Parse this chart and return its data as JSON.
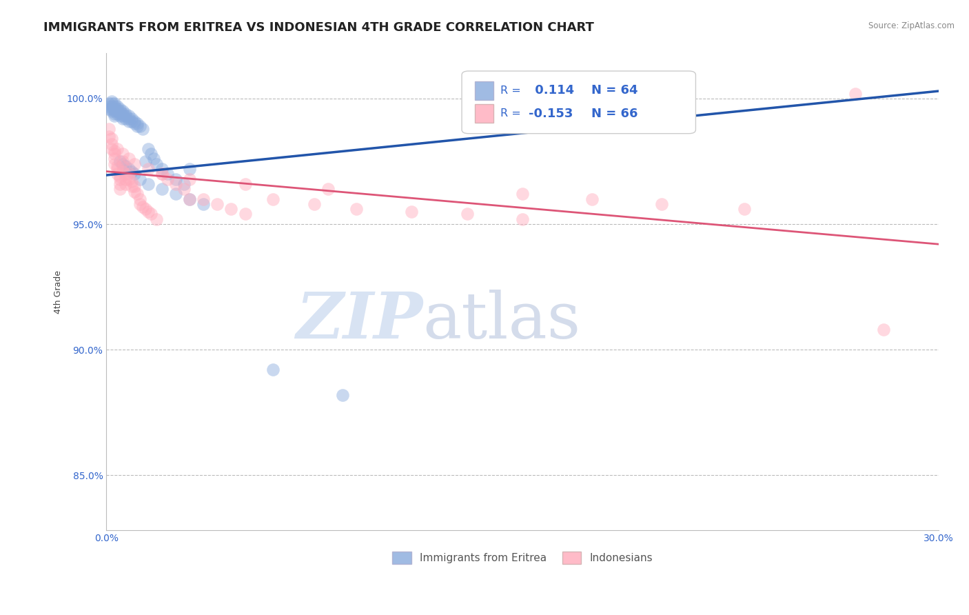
{
  "title": "IMMIGRANTS FROM ERITREA VS INDONESIAN 4TH GRADE CORRELATION CHART",
  "source": "Source: ZipAtlas.com",
  "ylabel": "4th Grade",
  "xlim": [
    0.0,
    0.3
  ],
  "ylim": [
    0.828,
    1.018
  ],
  "xticks": [
    0.0,
    0.05,
    0.1,
    0.15,
    0.2,
    0.25,
    0.3
  ],
  "xticklabels": [
    "0.0%",
    "",
    "",
    "",
    "",
    "",
    "30.0%"
  ],
  "yticks": [
    0.85,
    0.9,
    0.95,
    1.0
  ],
  "yticklabels": [
    "85.0%",
    "90.0%",
    "95.0%",
    "100.0%"
  ],
  "grid_color": "#bbbbbb",
  "background_color": "#ffffff",
  "blue_color": "#88aadd",
  "pink_color": "#ffaabb",
  "blue_line_color": "#2255aa",
  "pink_line_color": "#dd5577",
  "R_blue": 0.114,
  "N_blue": 64,
  "R_pink": -0.153,
  "N_pink": 66,
  "legend_label_blue": "Immigrants from Eritrea",
  "legend_label_pink": "Indonesians",
  "title_fontsize": 13,
  "axis_label_fontsize": 9,
  "tick_fontsize": 10,
  "legend_fontsize": 11,
  "watermark_zip": "ZIP",
  "watermark_atlas": "atlas",
  "blue_line_y0": 0.9695,
  "blue_line_y1": 1.003,
  "pink_line_y0": 0.971,
  "pink_line_y1": 0.942,
  "blue_scatter_x": [
    0.001,
    0.001,
    0.001,
    0.002,
    0.002,
    0.002,
    0.002,
    0.002,
    0.003,
    0.003,
    0.003,
    0.003,
    0.003,
    0.003,
    0.004,
    0.004,
    0.004,
    0.004,
    0.005,
    0.005,
    0.005,
    0.005,
    0.006,
    0.006,
    0.006,
    0.006,
    0.007,
    0.007,
    0.007,
    0.008,
    0.008,
    0.008,
    0.009,
    0.009,
    0.01,
    0.01,
    0.011,
    0.011,
    0.012,
    0.013,
    0.014,
    0.015,
    0.016,
    0.017,
    0.018,
    0.02,
    0.022,
    0.025,
    0.028,
    0.03,
    0.005,
    0.006,
    0.007,
    0.008,
    0.009,
    0.01,
    0.012,
    0.015,
    0.02,
    0.025,
    0.03,
    0.035,
    0.06,
    0.085
  ],
  "blue_scatter_y": [
    0.998,
    0.997,
    0.996,
    0.999,
    0.998,
    0.997,
    0.996,
    0.995,
    0.998,
    0.997,
    0.996,
    0.995,
    0.994,
    0.993,
    0.997,
    0.996,
    0.995,
    0.994,
    0.996,
    0.995,
    0.994,
    0.993,
    0.995,
    0.994,
    0.993,
    0.992,
    0.994,
    0.993,
    0.992,
    0.993,
    0.992,
    0.991,
    0.992,
    0.991,
    0.991,
    0.99,
    0.99,
    0.989,
    0.989,
    0.988,
    0.975,
    0.98,
    0.978,
    0.976,
    0.974,
    0.972,
    0.97,
    0.968,
    0.966,
    0.972,
    0.975,
    0.974,
    0.973,
    0.972,
    0.971,
    0.97,
    0.968,
    0.966,
    0.964,
    0.962,
    0.96,
    0.958,
    0.892,
    0.882
  ],
  "pink_scatter_x": [
    0.001,
    0.001,
    0.002,
    0.002,
    0.002,
    0.003,
    0.003,
    0.003,
    0.003,
    0.004,
    0.004,
    0.004,
    0.005,
    0.005,
    0.005,
    0.005,
    0.006,
    0.006,
    0.006,
    0.007,
    0.007,
    0.007,
    0.008,
    0.008,
    0.009,
    0.009,
    0.01,
    0.01,
    0.011,
    0.012,
    0.012,
    0.013,
    0.014,
    0.015,
    0.016,
    0.018,
    0.02,
    0.022,
    0.025,
    0.028,
    0.03,
    0.035,
    0.04,
    0.045,
    0.05,
    0.06,
    0.075,
    0.09,
    0.11,
    0.13,
    0.15,
    0.175,
    0.2,
    0.23,
    0.004,
    0.006,
    0.008,
    0.01,
    0.015,
    0.02,
    0.03,
    0.05,
    0.08,
    0.15,
    0.27,
    0.28
  ],
  "pink_scatter_y": [
    0.988,
    0.985,
    0.984,
    0.982,
    0.98,
    0.979,
    0.978,
    0.976,
    0.974,
    0.973,
    0.972,
    0.97,
    0.969,
    0.968,
    0.966,
    0.964,
    0.975,
    0.973,
    0.971,
    0.97,
    0.968,
    0.966,
    0.97,
    0.968,
    0.967,
    0.965,
    0.965,
    0.963,
    0.962,
    0.96,
    0.958,
    0.957,
    0.956,
    0.955,
    0.954,
    0.952,
    0.97,
    0.968,
    0.966,
    0.964,
    0.96,
    0.96,
    0.958,
    0.956,
    0.954,
    0.96,
    0.958,
    0.956,
    0.955,
    0.954,
    0.952,
    0.96,
    0.958,
    0.956,
    0.98,
    0.978,
    0.976,
    0.974,
    0.972,
    0.97,
    0.968,
    0.966,
    0.964,
    0.962,
    1.002,
    0.908
  ]
}
